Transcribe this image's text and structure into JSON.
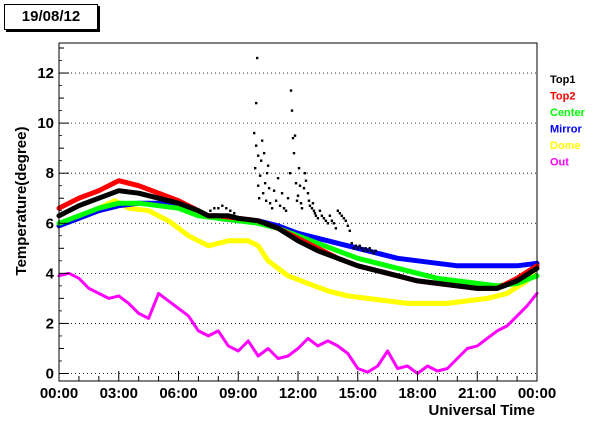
{
  "header": {
    "date": "19/08/12"
  },
  "chart_data": {
    "type": "line",
    "xlabel": "Universal Time",
    "ylabel": "Temperature(degree)",
    "xlim": [
      0,
      24
    ],
    "ylim": [
      -0.3,
      13.2
    ],
    "x_ticks": [
      {
        "value": 0,
        "label": "00:00"
      },
      {
        "value": 3,
        "label": "03:00"
      },
      {
        "value": 6,
        "label": "06:00"
      },
      {
        "value": 9,
        "label": "09:00"
      },
      {
        "value": 12,
        "label": "12:00"
      },
      {
        "value": 15,
        "label": "15:00"
      },
      {
        "value": 18,
        "label": "18:00"
      },
      {
        "value": 21,
        "label": "21:00"
      },
      {
        "value": 24,
        "label": "00:00"
      }
    ],
    "y_ticks": [
      0,
      2,
      4,
      6,
      8,
      10,
      12
    ],
    "grid": "dotted",
    "legend_position": "right",
    "series": [
      {
        "name": "Top1",
        "color": "#000000",
        "marker": "scatter",
        "x": [
          0,
          1,
          2,
          3,
          4,
          5,
          6,
          7,
          7.5,
          8,
          8.5,
          9,
          10,
          11,
          12,
          13,
          14,
          15,
          16,
          17,
          18,
          19,
          20,
          21,
          22,
          23,
          24
        ],
        "y": [
          6.3,
          6.7,
          7.0,
          7.3,
          7.2,
          7.0,
          6.8,
          6.5,
          6.3,
          6.3,
          6.3,
          6.2,
          6.1,
          5.8,
          5.3,
          4.9,
          4.6,
          4.3,
          4.1,
          3.9,
          3.7,
          3.6,
          3.5,
          3.4,
          3.4,
          3.7,
          4.2
        ]
      },
      {
        "name": "Top2",
        "color": "#ff0000",
        "x": [
          0,
          1,
          2,
          3,
          4,
          5,
          6,
          7,
          7.5,
          8,
          9,
          10,
          11,
          12,
          13,
          14,
          15,
          16,
          17,
          18,
          19,
          20,
          21,
          22,
          23,
          24
        ],
        "y": [
          6.6,
          7.0,
          7.3,
          7.7,
          7.5,
          7.2,
          6.9,
          6.5,
          6.3,
          6.3,
          6.2,
          6.1,
          5.8,
          5.4,
          5.0,
          4.6,
          4.3,
          4.1,
          3.9,
          3.7,
          3.6,
          3.5,
          3.4,
          3.4,
          3.8,
          4.3
        ]
      },
      {
        "name": "Center",
        "color": "#00ff00",
        "x": [
          0,
          1,
          2,
          3,
          4,
          5,
          6,
          7,
          8,
          9,
          10,
          11,
          12,
          13,
          14,
          15,
          16,
          17,
          18,
          19,
          20,
          21,
          22,
          23,
          24
        ],
        "y": [
          6.0,
          6.3,
          6.6,
          6.8,
          6.8,
          6.7,
          6.6,
          6.3,
          6.2,
          6.1,
          6.0,
          5.8,
          5.5,
          5.2,
          4.9,
          4.6,
          4.4,
          4.2,
          4.0,
          3.8,
          3.7,
          3.6,
          3.5,
          3.6,
          3.9
        ]
      },
      {
        "name": "Mirror",
        "color": "#0000ff",
        "x": [
          0,
          1,
          2,
          3,
          4,
          5,
          6,
          7,
          8,
          9,
          10,
          11,
          12,
          13,
          14,
          15,
          16,
          17,
          18,
          19,
          20,
          21,
          22,
          23,
          24
        ],
        "y": [
          5.9,
          6.2,
          6.5,
          6.7,
          6.8,
          6.8,
          6.7,
          6.4,
          6.2,
          6.1,
          6.1,
          5.9,
          5.6,
          5.4,
          5.2,
          5.0,
          4.8,
          4.6,
          4.5,
          4.4,
          4.3,
          4.3,
          4.3,
          4.3,
          4.4
        ]
      },
      {
        "name": "Dome",
        "color": "#ffff00",
        "x": [
          0,
          1,
          2,
          2.8,
          3.5,
          4.5,
          5.5,
          6.5,
          7.5,
          8.5,
          9.5,
          10,
          10.5,
          11.5,
          12.5,
          13.5,
          14.5,
          15.5,
          16.5,
          17.5,
          18.5,
          19.5,
          20.5,
          21.5,
          22.5,
          23.5,
          24
        ],
        "y": [
          5.9,
          6.2,
          6.6,
          6.9,
          6.6,
          6.5,
          6.1,
          5.5,
          5.1,
          5.3,
          5.3,
          5.1,
          4.5,
          3.9,
          3.6,
          3.3,
          3.1,
          3.0,
          2.9,
          2.8,
          2.8,
          2.8,
          2.9,
          3.0,
          3.2,
          3.7,
          4.3
        ]
      },
      {
        "name": "Out",
        "color": "#ff00ff",
        "x": [
          0,
          0.5,
          1,
          1.5,
          2,
          2.5,
          3,
          3.5,
          4,
          4.5,
          5,
          5.5,
          6,
          6.5,
          7,
          7.5,
          8,
          8.5,
          9,
          9.5,
          10,
          10.5,
          11,
          11.5,
          12,
          12.5,
          13,
          13.5,
          14,
          14.5,
          15,
          15.5,
          16,
          16.5,
          17,
          17.5,
          18,
          18.5,
          19,
          19.5,
          20,
          20.5,
          21,
          21.5,
          22,
          22.5,
          23,
          23.5,
          24
        ],
        "y": [
          3.9,
          4.0,
          3.8,
          3.4,
          3.2,
          3.0,
          3.1,
          2.8,
          2.4,
          2.2,
          3.2,
          2.9,
          2.6,
          2.3,
          1.7,
          1.5,
          1.7,
          1.1,
          0.9,
          1.3,
          0.7,
          1.0,
          0.6,
          0.7,
          1.0,
          1.4,
          1.1,
          1.3,
          1.1,
          0.8,
          0.2,
          0.05,
          0.3,
          0.9,
          0.2,
          0.3,
          0.0,
          0.3,
          0.1,
          0.2,
          0.6,
          1.0,
          1.1,
          1.4,
          1.7,
          1.9,
          2.3,
          2.7,
          3.2
        ]
      }
    ],
    "top1_scatter_points": [
      [
        9.95,
        12.6
      ],
      [
        9.9,
        10.8
      ],
      [
        9.85,
        8.2
      ],
      [
        10.0,
        7.5
      ],
      [
        10.05,
        7.0
      ],
      [
        10.1,
        7.9
      ],
      [
        10.15,
        8.5
      ],
      [
        10.25,
        7.2
      ],
      [
        10.3,
        8.8
      ],
      [
        10.35,
        7.6
      ],
      [
        10.4,
        6.9
      ],
      [
        10.5,
        8.3
      ],
      [
        10.55,
        7.4
      ],
      [
        10.6,
        6.8
      ],
      [
        9.8,
        9.6
      ],
      [
        9.9,
        9.1
      ],
      [
        10.0,
        8.7
      ],
      [
        10.2,
        9.3
      ],
      [
        10.45,
        8.0
      ],
      [
        10.7,
        6.6
      ],
      [
        10.8,
        7.3
      ],
      [
        10.9,
        6.9
      ],
      [
        11.0,
        7.8
      ],
      [
        11.1,
        6.7
      ],
      [
        11.2,
        7.2
      ],
      [
        11.3,
        6.6
      ],
      [
        11.4,
        6.5
      ],
      [
        11.5,
        7.0
      ],
      [
        11.6,
        8.0
      ],
      [
        11.65,
        11.3
      ],
      [
        11.7,
        10.5
      ],
      [
        11.75,
        9.4
      ],
      [
        11.8,
        8.8
      ],
      [
        11.85,
        9.5
      ],
      [
        11.9,
        7.6
      ],
      [
        11.95,
        6.9
      ],
      [
        12.0,
        7.1
      ],
      [
        12.05,
        8.2
      ],
      [
        12.1,
        7.5
      ],
      [
        12.15,
        6.8
      ],
      [
        12.2,
        6.6
      ],
      [
        12.3,
        7.4
      ],
      [
        12.35,
        8.0
      ],
      [
        12.4,
        7.7
      ],
      [
        12.5,
        7.2
      ],
      [
        12.55,
        6.9
      ],
      [
        12.6,
        6.7
      ],
      [
        12.7,
        6.6
      ],
      [
        12.75,
        6.8
      ],
      [
        12.8,
        6.5
      ],
      [
        12.85,
        6.4
      ],
      [
        12.9,
        6.3
      ],
      [
        13.0,
        6.2
      ],
      [
        13.1,
        6.5
      ],
      [
        13.2,
        6.3
      ],
      [
        13.3,
        6.2
      ],
      [
        13.4,
        6.1
      ],
      [
        13.5,
        6.0
      ],
      [
        13.6,
        6.3
      ],
      [
        13.7,
        6.1
      ],
      [
        13.8,
        6.0
      ],
      [
        13.9,
        5.8
      ],
      [
        14.0,
        6.5
      ],
      [
        14.1,
        6.4
      ],
      [
        14.2,
        6.3
      ],
      [
        14.3,
        6.2
      ],
      [
        14.4,
        6.1
      ],
      [
        14.5,
        5.9
      ],
      [
        14.6,
        5.7
      ],
      [
        14.7,
        5.2
      ],
      [
        14.8,
        5.0
      ],
      [
        14.9,
        5.1
      ],
      [
        15.0,
        5.0
      ],
      [
        15.1,
        5.1
      ],
      [
        15.2,
        5.0
      ],
      [
        15.3,
        4.9
      ],
      [
        15.4,
        5.0
      ],
      [
        15.5,
        4.9
      ],
      [
        15.6,
        5.0
      ],
      [
        15.7,
        4.9
      ],
      [
        15.8,
        4.8
      ],
      [
        15.9,
        4.9
      ],
      [
        7.6,
        6.5
      ],
      [
        7.8,
        6.6
      ],
      [
        8.0,
        6.6
      ],
      [
        8.2,
        6.7
      ],
      [
        8.4,
        6.6
      ],
      [
        8.6,
        6.5
      ],
      [
        8.8,
        6.4
      ]
    ]
  }
}
